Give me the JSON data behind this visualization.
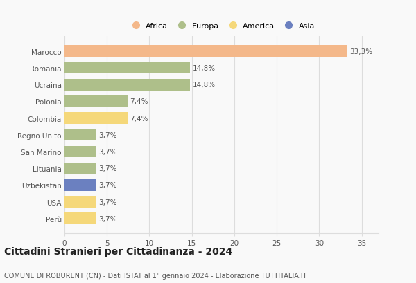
{
  "countries": [
    "Marocco",
    "Romania",
    "Ucraina",
    "Polonia",
    "Colombia",
    "Regno Unito",
    "San Marino",
    "Lituania",
    "Uzbekistan",
    "USA",
    "Perù"
  ],
  "values": [
    33.3,
    14.8,
    14.8,
    7.4,
    7.4,
    3.7,
    3.7,
    3.7,
    3.7,
    3.7,
    3.7
  ],
  "labels": [
    "33,3%",
    "14,8%",
    "14,8%",
    "7,4%",
    "7,4%",
    "3,7%",
    "3,7%",
    "3,7%",
    "3,7%",
    "3,7%",
    "3,7%"
  ],
  "categories": [
    "Africa",
    "Europa",
    "America",
    "Asia"
  ],
  "bar_colors": [
    "#F4B88A",
    "#AEBF8A",
    "#AEBF8A",
    "#AEBF8A",
    "#F5D87A",
    "#AEBF8A",
    "#AEBF8A",
    "#AEBF8A",
    "#6B80C0",
    "#F5D87A",
    "#F5D87A"
  ],
  "legend_colors": [
    "#F4B88A",
    "#AEBF8A",
    "#F5D87A",
    "#6B80C0"
  ],
  "xlim": [
    0,
    37
  ],
  "xticks": [
    0,
    5,
    10,
    15,
    20,
    25,
    30,
    35
  ],
  "title": "Cittadini Stranieri per Cittadinanza - 2024",
  "subtitle": "COMUNE DI ROBURENT (CN) - Dati ISTAT al 1° gennaio 2024 - Elaborazione TUTTITALIA.IT",
  "bg_color": "#f9f9f9",
  "grid_color": "#dddddd",
  "bar_height": 0.7,
  "title_fontsize": 10,
  "subtitle_fontsize": 7,
  "label_fontsize": 7.5,
  "tick_fontsize": 7.5,
  "legend_fontsize": 8
}
